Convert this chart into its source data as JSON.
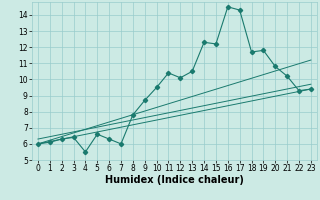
{
  "xlabel": "Humidex (Indice chaleur)",
  "x_data": [
    0,
    1,
    2,
    3,
    4,
    5,
    6,
    7,
    8,
    9,
    10,
    11,
    12,
    13,
    14,
    15,
    16,
    17,
    18,
    19,
    20,
    21,
    22,
    23
  ],
  "y_main": [
    6.0,
    6.1,
    6.3,
    6.4,
    5.5,
    6.6,
    6.3,
    6.0,
    7.8,
    8.7,
    9.5,
    10.4,
    10.1,
    10.5,
    12.3,
    12.2,
    14.5,
    14.3,
    11.7,
    11.8,
    10.8,
    10.2,
    9.3,
    9.4
  ],
  "line1": [
    [
      0,
      6.0
    ],
    [
      23,
      9.4
    ]
  ],
  "line2": [
    [
      0,
      6.0
    ],
    [
      23,
      11.2
    ]
  ],
  "line3": [
    [
      0,
      6.3
    ],
    [
      23,
      9.7
    ]
  ],
  "xlim": [
    -0.5,
    23.5
  ],
  "ylim": [
    5.0,
    14.8
  ],
  "yticks": [
    5,
    6,
    7,
    8,
    9,
    10,
    11,
    12,
    13,
    14
  ],
  "xticks": [
    0,
    1,
    2,
    3,
    4,
    5,
    6,
    7,
    8,
    9,
    10,
    11,
    12,
    13,
    14,
    15,
    16,
    17,
    18,
    19,
    20,
    21,
    22,
    23
  ],
  "line_color": "#1a7a6e",
  "bg_color": "#cceae4",
  "grid_color": "#99cccc",
  "tick_fontsize": 5.5,
  "label_fontsize": 7
}
